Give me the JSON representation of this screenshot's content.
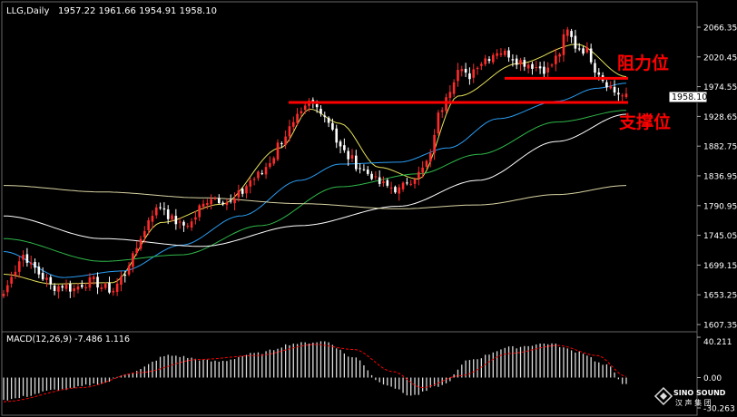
{
  "header": {
    "symbol_tf": "LLG,Daily",
    "ohlc": "1957.22 1961.66 1954.91 1958.10"
  },
  "colors": {
    "background": "#000000",
    "bull": "#ff2b2b",
    "bear": "#ffffff",
    "ma_fast": "#e6e15a",
    "ma_mid": "#2a9df4",
    "ma_slow": "#2fb84a",
    "ma_long": "#ffffff",
    "ma_longest": "#d9d3a3",
    "annotation": "#ff0000",
    "macd_hist": "#dcdcdc",
    "macd_signal": "#ff0000"
  },
  "annotations": {
    "resistance_label": "阻力位",
    "support_label": "支撑位"
  },
  "logo": {
    "name": "SINO SOUND",
    "chinese": "汉 声 集 团"
  },
  "chart_data": [
    {
      "type": "candlestick",
      "title": "LLG,Daily",
      "ylim": [
        1607.35,
        2083.0
      ],
      "y_tick_labels": [
        "2066.35",
        "2020.45",
        "1974.55",
        "1928.65",
        "1882.75",
        "1836.95",
        "1790.95",
        "1745.05",
        "1699.15",
        "1653.25",
        "1607.35"
      ],
      "current_price_label": "1958.10",
      "horizontal_lines": [
        {
          "name": "resistance",
          "label": "阻力位",
          "y": 1987.5
        },
        {
          "name": "support",
          "label": "支撑位",
          "y": 1950.2
        }
      ],
      "price_anchors": [
        1655,
        1690,
        1715,
        1695,
        1680,
        1665,
        1668,
        1662,
        1670,
        1675,
        1665,
        1660,
        1680,
        1710,
        1745,
        1780,
        1790,
        1770,
        1760,
        1765,
        1790,
        1805,
        1800,
        1795,
        1810,
        1830,
        1840,
        1860,
        1890,
        1910,
        1930,
        1950,
        1940,
        1920,
        1880,
        1865,
        1850,
        1840,
        1825,
        1820,
        1815,
        1830,
        1840,
        1860,
        1930,
        1970,
        2000,
        1990,
        2010,
        2020,
        2030,
        2025,
        2015,
        2010,
        2005,
        2000,
        2020,
        2060,
        2035,
        2030,
        2000,
        1980,
        1965,
        1958
      ],
      "ma_series": [
        {
          "color": "#e6e15a",
          "anchors": [
            [
              0,
              1685
            ],
            [
              5,
              1670
            ],
            [
              11,
              1672
            ],
            [
              16,
              1765
            ],
            [
              22,
              1793
            ],
            [
              28,
              1880
            ],
            [
              31,
              1940
            ],
            [
              34,
              1918
            ],
            [
              38,
              1850
            ],
            [
              42,
              1832
            ],
            [
              46,
              1960
            ],
            [
              52,
              2010
            ],
            [
              58,
              2040
            ],
            [
              63,
              1990
            ]
          ]
        },
        {
          "color": "#2a9df4",
          "anchors": [
            [
              0,
              1720
            ],
            [
              6,
              1680
            ],
            [
              12,
              1690
            ],
            [
              18,
              1730
            ],
            [
              24,
              1775
            ],
            [
              30,
              1830
            ],
            [
              34,
              1855
            ],
            [
              40,
              1858
            ],
            [
              45,
              1880
            ],
            [
              50,
              1925
            ],
            [
              56,
              1952
            ],
            [
              60,
              1972
            ],
            [
              63,
              1980
            ]
          ]
        },
        {
          "color": "#2fb84a",
          "anchors": [
            [
              0,
              1740
            ],
            [
              10,
              1705
            ],
            [
              18,
              1715
            ],
            [
              26,
              1760
            ],
            [
              34,
              1820
            ],
            [
              42,
              1840
            ],
            [
              48,
              1870
            ],
            [
              56,
              1920
            ],
            [
              63,
              1938
            ]
          ]
        },
        {
          "color": "#ffffff",
          "anchors": [
            [
              0,
              1775
            ],
            [
              10,
              1740
            ],
            [
              20,
              1728
            ],
            [
              30,
              1760
            ],
            [
              40,
              1790
            ],
            [
              48,
              1830
            ],
            [
              56,
              1890
            ],
            [
              63,
              1932
            ]
          ]
        },
        {
          "color": "#d9d3a3",
          "anchors": [
            [
              0,
              1822
            ],
            [
              10,
              1812
            ],
            [
              20,
              1803
            ],
            [
              30,
              1794
            ],
            [
              40,
              1786
            ],
            [
              48,
              1792
            ],
            [
              56,
              1808
            ],
            [
              63,
              1822
            ]
          ]
        }
      ]
    },
    {
      "type": "bar",
      "title": "MACD(12,26,9) -7.486 1.116",
      "ylim": [
        -30.263,
        40.211
      ],
      "y_tick_labels": [
        "40.211",
        "0.00",
        "-30.263"
      ],
      "macd_anchors": [
        [
          0,
          -22
        ],
        [
          6,
          -12
        ],
        [
          10,
          -6
        ],
        [
          13,
          5
        ],
        [
          17,
          22
        ],
        [
          22,
          16
        ],
        [
          26,
          24
        ],
        [
          30,
          34
        ],
        [
          33,
          36
        ],
        [
          36,
          20
        ],
        [
          39,
          -6
        ],
        [
          42,
          -18
        ],
        [
          45,
          -8
        ],
        [
          48,
          18
        ],
        [
          52,
          30
        ],
        [
          56,
          34
        ],
        [
          59,
          26
        ],
        [
          62,
          12
        ],
        [
          64,
          -7.486
        ]
      ],
      "signal_anchors": [
        [
          0,
          -24
        ],
        [
          8,
          -10
        ],
        [
          14,
          5
        ],
        [
          20,
          18
        ],
        [
          26,
          22
        ],
        [
          32,
          33
        ],
        [
          36,
          28
        ],
        [
          40,
          6
        ],
        [
          43,
          -10
        ],
        [
          47,
          2
        ],
        [
          52,
          24
        ],
        [
          57,
          32
        ],
        [
          61,
          22
        ],
        [
          64,
          1.116
        ]
      ]
    }
  ]
}
